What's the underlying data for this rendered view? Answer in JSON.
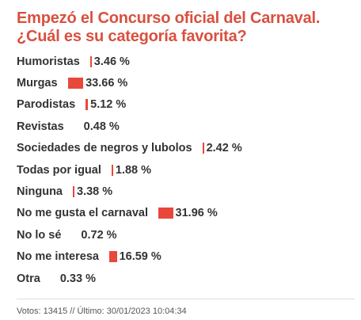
{
  "poll": {
    "title": "Empezó el Concurso oficial del Carnaval. ¿Cuál es su categoría favorita?",
    "footer": "Votos: 13415  //  Último: 30/01/2023 10:04:34"
  },
  "colors": {
    "title": "#d9503f",
    "bar": "#e8473a",
    "text": "#333333"
  },
  "chart_data": {
    "type": "bar",
    "orientation": "horizontal",
    "title": "Empezó el Concurso oficial del Carnaval. ¿Cuál es su categoría favorita?",
    "categories": [
      "Humoristas",
      "Murgas",
      "Parodistas",
      "Revistas",
      "Sociedades de negros y lubolos",
      "Todas por igual",
      "Ninguna",
      "No me gusta el carnaval",
      "No lo sé",
      "No me interesa",
      "Otra"
    ],
    "values": [
      3.46,
      33.66,
      5.12,
      0.48,
      2.42,
      1.88,
      3.38,
      31.96,
      0.72,
      16.59,
      0.33
    ],
    "value_labels": [
      "3.46 %",
      "33.66 %",
      "5.12 %",
      "0.48 %",
      "2.42 %",
      "1.88 %",
      "3.38 %",
      "31.96 %",
      "0.72 %",
      "16.59 %",
      "0.33 %"
    ],
    "unit": "%",
    "grid": false,
    "legend": "none"
  }
}
